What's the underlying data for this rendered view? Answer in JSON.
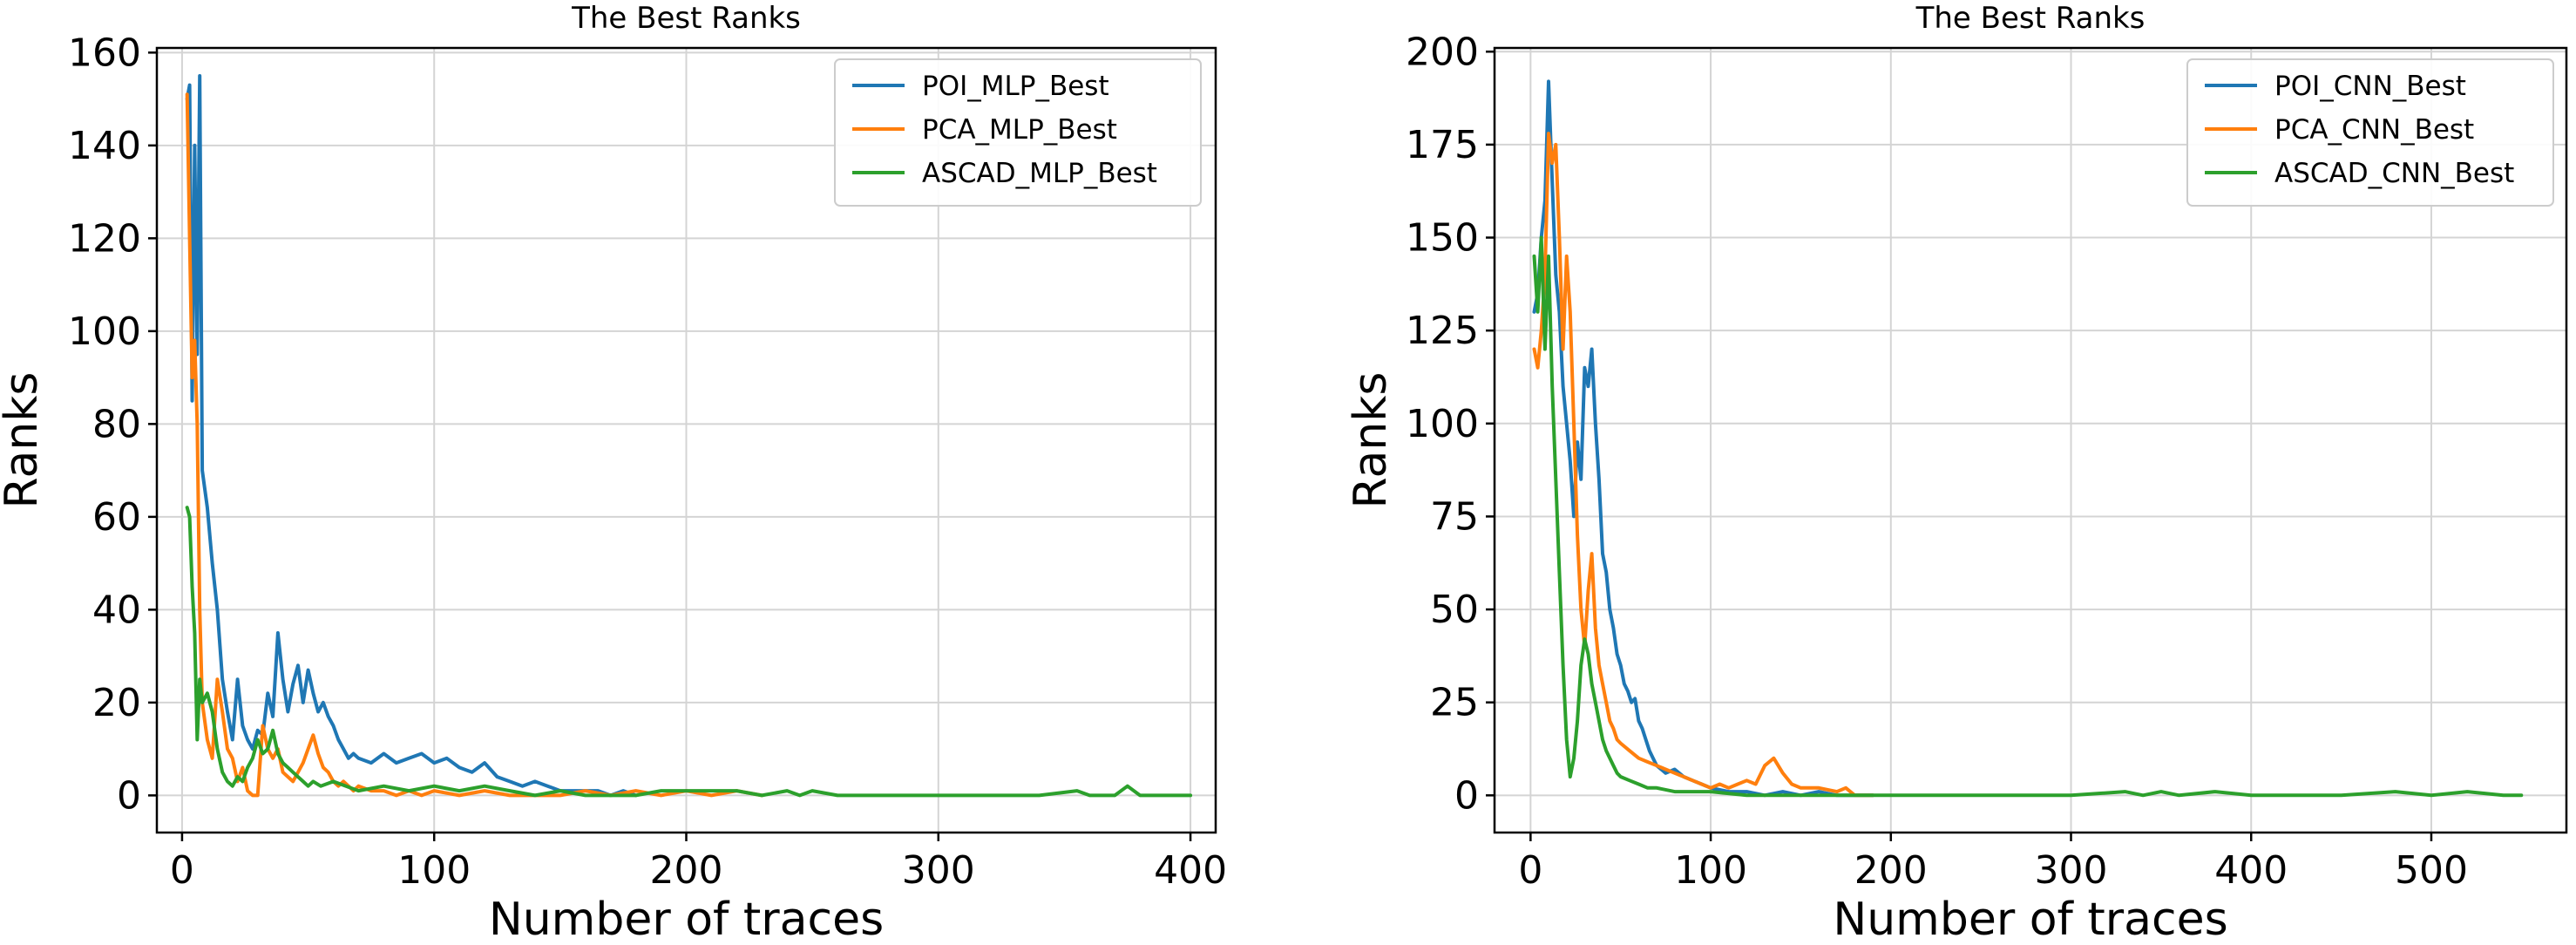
{
  "chart_data": [
    {
      "type": "line",
      "title": "The Best Ranks",
      "xlabel": "Number of traces",
      "ylabel": "Ranks",
      "xlim": [
        -10,
        410
      ],
      "ylim": [
        -8,
        161
      ],
      "xticks": [
        0,
        100,
        200,
        300,
        400
      ],
      "yticks": [
        0,
        20,
        40,
        60,
        80,
        100,
        120,
        140,
        160
      ],
      "grid": true,
      "legend_position": "top-right",
      "series": [
        {
          "name": "POI_MLP_Best",
          "color": "#1f77b4",
          "x": [
            2,
            3,
            4,
            5,
            6,
            7,
            8,
            10,
            12,
            14,
            16,
            18,
            20,
            22,
            24,
            26,
            28,
            30,
            32,
            34,
            36,
            38,
            40,
            42,
            44,
            46,
            48,
            50,
            52,
            54,
            56,
            58,
            60,
            62,
            64,
            66,
            68,
            70,
            75,
            80,
            85,
            90,
            95,
            100,
            105,
            110,
            115,
            120,
            125,
            130,
            135,
            140,
            145,
            150,
            155,
            160,
            165,
            170,
            175,
            180
          ],
          "y": [
            150,
            153,
            85,
            140,
            95,
            155,
            70,
            62,
            50,
            40,
            25,
            18,
            12,
            25,
            15,
            12,
            10,
            14,
            13,
            22,
            17,
            35,
            25,
            18,
            24,
            28,
            20,
            27,
            22,
            18,
            20,
            17,
            15,
            12,
            10,
            8,
            9,
            8,
            7,
            9,
            7,
            8,
            9,
            7,
            8,
            6,
            5,
            7,
            4,
            3,
            2,
            3,
            2,
            1,
            1,
            1,
            1,
            0,
            1,
            0
          ]
        },
        {
          "name": "PCA_MLP_Best",
          "color": "#ff7f0e",
          "x": [
            2,
            3,
            4,
            5,
            6,
            7,
            8,
            10,
            12,
            14,
            16,
            18,
            20,
            22,
            24,
            26,
            28,
            30,
            32,
            34,
            36,
            38,
            40,
            42,
            44,
            46,
            48,
            50,
            52,
            54,
            56,
            58,
            60,
            62,
            64,
            66,
            68,
            70,
            75,
            80,
            85,
            90,
            95,
            100,
            110,
            120,
            130,
            140,
            150,
            160,
            170,
            180,
            190,
            200,
            210,
            220,
            230
          ],
          "y": [
            151,
            120,
            90,
            98,
            80,
            40,
            20,
            12,
            8,
            25,
            18,
            10,
            8,
            3,
            6,
            1,
            0,
            0,
            15,
            10,
            8,
            10,
            5,
            4,
            3,
            5,
            7,
            10,
            13,
            9,
            6,
            5,
            3,
            2,
            3,
            2,
            1,
            2,
            1,
            1,
            0,
            1,
            0,
            1,
            0,
            1,
            0,
            0,
            0,
            1,
            0,
            1,
            0,
            1,
            0,
            1,
            0
          ]
        },
        {
          "name": "ASCAD_MLP_Best",
          "color": "#2ca02c",
          "x": [
            2,
            3,
            4,
            5,
            6,
            7,
            8,
            10,
            12,
            14,
            16,
            18,
            20,
            22,
            24,
            26,
            28,
            30,
            32,
            34,
            36,
            38,
            40,
            42,
            44,
            46,
            48,
            50,
            52,
            55,
            60,
            65,
            70,
            80,
            90,
            100,
            110,
            120,
            130,
            140,
            150,
            160,
            170,
            180,
            190,
            200,
            210,
            220,
            230,
            240,
            245,
            250,
            260,
            280,
            300,
            320,
            340,
            355,
            360,
            370,
            375,
            380,
            390,
            400
          ],
          "y": [
            62,
            60,
            45,
            35,
            12,
            25,
            20,
            22,
            18,
            10,
            5,
            3,
            2,
            4,
            3,
            6,
            8,
            12,
            9,
            10,
            14,
            9,
            7,
            6,
            5,
            4,
            3,
            2,
            3,
            2,
            3,
            2,
            1,
            2,
            1,
            2,
            1,
            2,
            1,
            0,
            1,
            0,
            0,
            0,
            1,
            1,
            1,
            1,
            0,
            1,
            0,
            1,
            0,
            0,
            0,
            0,
            0,
            1,
            0,
            0,
            2,
            0,
            0,
            0
          ]
        }
      ]
    },
    {
      "type": "line",
      "title": "The Best Ranks",
      "xlabel": "Number of traces",
      "ylabel": "Ranks",
      "xlim": [
        -20,
        575
      ],
      "ylim": [
        -10,
        201
      ],
      "xticks": [
        0,
        100,
        200,
        300,
        400,
        500
      ],
      "yticks": [
        0,
        25,
        50,
        75,
        100,
        125,
        150,
        175,
        200
      ],
      "grid": true,
      "legend_position": "top-right",
      "series": [
        {
          "name": "POI_CNN_Best",
          "color": "#1f77b4",
          "x": [
            2,
            4,
            6,
            8,
            10,
            12,
            14,
            16,
            18,
            20,
            22,
            24,
            26,
            28,
            30,
            32,
            34,
            36,
            38,
            40,
            42,
            44,
            46,
            48,
            50,
            52,
            54,
            56,
            58,
            60,
            62,
            64,
            66,
            68,
            70,
            75,
            80,
            85,
            90,
            95,
            100,
            110,
            120,
            130,
            140,
            150,
            160,
            170,
            180,
            190
          ],
          "y": [
            130,
            135,
            150,
            160,
            192,
            165,
            140,
            130,
            110,
            100,
            90,
            75,
            95,
            85,
            115,
            110,
            120,
            100,
            85,
            65,
            60,
            50,
            45,
            38,
            35,
            30,
            28,
            25,
            26,
            20,
            18,
            15,
            12,
            10,
            8,
            6,
            7,
            5,
            4,
            3,
            2,
            1,
            1,
            0,
            1,
            0,
            1,
            0,
            0,
            0
          ]
        },
        {
          "name": "PCA_CNN_Best",
          "color": "#ff7f0e",
          "x": [
            2,
            4,
            6,
            8,
            10,
            12,
            14,
            16,
            18,
            20,
            22,
            24,
            26,
            28,
            30,
            32,
            34,
            36,
            38,
            40,
            42,
            44,
            46,
            48,
            50,
            55,
            60,
            65,
            70,
            75,
            80,
            85,
            90,
            95,
            100,
            105,
            110,
            115,
            120,
            125,
            130,
            135,
            140,
            145,
            150,
            160,
            170,
            175,
            180,
            190
          ],
          "y": [
            120,
            115,
            125,
            140,
            178,
            170,
            175,
            150,
            120,
            145,
            130,
            100,
            70,
            50,
            40,
            55,
            65,
            45,
            35,
            30,
            25,
            20,
            18,
            15,
            14,
            12,
            10,
            9,
            8,
            7,
            6,
            5,
            4,
            3,
            2,
            3,
            2,
            3,
            4,
            3,
            8,
            10,
            6,
            3,
            2,
            2,
            1,
            2,
            0,
            0
          ]
        },
        {
          "name": "ASCAD_CNN_Best",
          "color": "#2ca02c",
          "x": [
            2,
            4,
            6,
            8,
            10,
            12,
            14,
            16,
            18,
            20,
            22,
            24,
            26,
            28,
            30,
            32,
            34,
            36,
            38,
            40,
            42,
            44,
            46,
            48,
            50,
            55,
            60,
            65,
            70,
            80,
            90,
            100,
            120,
            140,
            160,
            180,
            200,
            250,
            300,
            330,
            340,
            350,
            360,
            380,
            400,
            450,
            480,
            500,
            520,
            540,
            550
          ],
          "y": [
            145,
            130,
            150,
            120,
            145,
            110,
            85,
            60,
            35,
            15,
            5,
            10,
            20,
            35,
            42,
            38,
            30,
            25,
            20,
            15,
            12,
            10,
            8,
            6,
            5,
            4,
            3,
            2,
            2,
            1,
            1,
            1,
            0,
            0,
            0,
            0,
            0,
            0,
            0,
            1,
            0,
            1,
            0,
            1,
            0,
            0,
            1,
            0,
            1,
            0,
            0
          ]
        }
      ]
    }
  ]
}
